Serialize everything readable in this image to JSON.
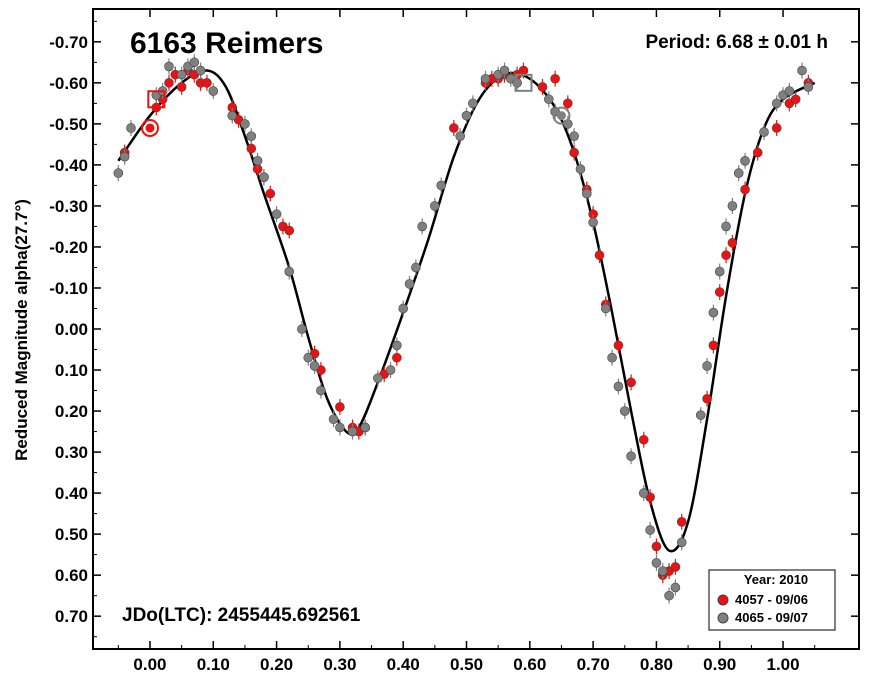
{
  "chart_data": {
    "type": "scatter",
    "title": "6163 Reimers",
    "period_label": "Period: 6.68 ± 0.01 h",
    "epoch_label": "JDo(LTC): 2455445.692561",
    "ylabel": "Reduced Magnitude alpha(27.7°)",
    "xlabel": "",
    "xlim": [
      -0.09,
      1.12
    ],
    "ylim": [
      0.78,
      -0.78
    ],
    "y_inverted": true,
    "grid": false,
    "legend_position": "bottom-right",
    "legend_title": "Year: 2010",
    "x_ticks": [
      "0.00",
      "0.10",
      "0.20",
      "0.30",
      "0.40",
      "0.50",
      "0.60",
      "0.70",
      "0.80",
      "0.90",
      "1.00"
    ],
    "y_ticks": [
      "-0.70",
      "-0.60",
      "-0.50",
      "-0.40",
      "-0.30",
      "-0.20",
      "-0.10",
      "0.00",
      "0.10",
      "0.20",
      "0.30",
      "0.40",
      "0.50",
      "0.60",
      "0.70"
    ],
    "x_tick_values": [
      0,
      0.1,
      0.2,
      0.3,
      0.4,
      0.5,
      0.6,
      0.7,
      0.8,
      0.9,
      1.0
    ],
    "y_tick_values": [
      -0.7,
      -0.6,
      -0.5,
      -0.4,
      -0.3,
      -0.2,
      -0.1,
      0,
      0.1,
      0.2,
      0.3,
      0.4,
      0.5,
      0.6,
      0.7
    ],
    "fit_curve": {
      "color": "#000000",
      "points": [
        [
          -0.05,
          -0.41
        ],
        [
          0.0,
          -0.52
        ],
        [
          0.05,
          -0.6
        ],
        [
          0.09,
          -0.63
        ],
        [
          0.12,
          -0.59
        ],
        [
          0.15,
          -0.47
        ],
        [
          0.18,
          -0.33
        ],
        [
          0.22,
          -0.15
        ],
        [
          0.25,
          0.02
        ],
        [
          0.28,
          0.17
        ],
        [
          0.31,
          0.25
        ],
        [
          0.33,
          0.24
        ],
        [
          0.36,
          0.13
        ],
        [
          0.4,
          -0.04
        ],
        [
          0.44,
          -0.22
        ],
        [
          0.48,
          -0.42
        ],
        [
          0.52,
          -0.56
        ],
        [
          0.56,
          -0.62
        ],
        [
          0.6,
          -0.61
        ],
        [
          0.64,
          -0.54
        ],
        [
          0.67,
          -0.43
        ],
        [
          0.7,
          -0.26
        ],
        [
          0.73,
          -0.04
        ],
        [
          0.76,
          0.2
        ],
        [
          0.79,
          0.42
        ],
        [
          0.82,
          0.54
        ],
        [
          0.85,
          0.47
        ],
        [
          0.88,
          0.22
        ],
        [
          0.91,
          -0.08
        ],
        [
          0.94,
          -0.33
        ],
        [
          0.97,
          -0.49
        ],
        [
          1.0,
          -0.56
        ],
        [
          1.05,
          -0.6
        ]
      ]
    },
    "series": [
      {
        "name": "4057 - 09/06",
        "color": "#ee1111",
        "points": [
          [
            -0.04,
            -0.43
          ],
          [
            0.01,
            -0.54
          ],
          [
            0.02,
            -0.56
          ],
          [
            0.03,
            -0.6
          ],
          [
            0.04,
            -0.62
          ],
          [
            0.05,
            -0.59
          ],
          [
            0.06,
            -0.63
          ],
          [
            0.07,
            -0.62
          ],
          [
            0.08,
            -0.6
          ],
          [
            0.09,
            -0.6
          ],
          [
            0.13,
            -0.54
          ],
          [
            0.14,
            -0.51
          ],
          [
            0.16,
            -0.44
          ],
          [
            0.17,
            -0.39
          ],
          [
            0.18,
            -0.37
          ],
          [
            0.19,
            -0.33
          ],
          [
            0.21,
            -0.25
          ],
          [
            0.22,
            -0.24
          ],
          [
            0.26,
            0.06
          ],
          [
            0.27,
            0.1
          ],
          [
            0.3,
            0.19
          ],
          [
            0.32,
            0.24
          ],
          [
            0.33,
            0.25
          ],
          [
            0.34,
            0.24
          ],
          [
            0.37,
            0.11
          ],
          [
            0.39,
            0.07
          ],
          [
            0.48,
            -0.49
          ],
          [
            0.53,
            -0.6
          ],
          [
            0.54,
            -0.61
          ],
          [
            0.55,
            -0.61
          ],
          [
            0.56,
            -0.62
          ],
          [
            0.58,
            -0.62
          ],
          [
            0.59,
            -0.63
          ],
          [
            0.62,
            -0.59
          ],
          [
            0.64,
            -0.61
          ],
          [
            0.66,
            -0.55
          ],
          [
            0.67,
            -0.43
          ],
          [
            0.69,
            -0.34
          ],
          [
            0.7,
            -0.28
          ],
          [
            0.71,
            -0.18
          ],
          [
            0.72,
            -0.06
          ],
          [
            0.74,
            0.04
          ],
          [
            0.76,
            0.13
          ],
          [
            0.78,
            0.27
          ],
          [
            0.79,
            0.41
          ],
          [
            0.8,
            0.53
          ],
          [
            0.81,
            0.6
          ],
          [
            0.82,
            0.59
          ],
          [
            0.83,
            0.58
          ],
          [
            0.84,
            0.47
          ],
          [
            0.88,
            0.17
          ],
          [
            0.89,
            0.04
          ],
          [
            0.9,
            -0.09
          ],
          [
            0.91,
            -0.18
          ],
          [
            0.92,
            -0.21
          ],
          [
            0.94,
            -0.34
          ],
          [
            0.96,
            -0.43
          ],
          [
            0.99,
            -0.49
          ],
          [
            1.01,
            -0.55
          ],
          [
            1.02,
            -0.56
          ],
          [
            1.04,
            -0.6
          ]
        ]
      },
      {
        "name": "4065 - 09/07",
        "color": "#808080",
        "points": [
          [
            -0.05,
            -0.38
          ],
          [
            -0.04,
            -0.42
          ],
          [
            -0.03,
            -0.49
          ],
          [
            0.01,
            -0.57
          ],
          [
            0.02,
            -0.58
          ],
          [
            0.03,
            -0.64
          ],
          [
            0.05,
            -0.62
          ],
          [
            0.06,
            -0.64
          ],
          [
            0.07,
            -0.65
          ],
          [
            0.08,
            -0.63
          ],
          [
            0.1,
            -0.58
          ],
          [
            0.13,
            -0.52
          ],
          [
            0.15,
            -0.5
          ],
          [
            0.16,
            -0.47
          ],
          [
            0.17,
            -0.41
          ],
          [
            0.18,
            -0.37
          ],
          [
            0.2,
            -0.28
          ],
          [
            0.22,
            -0.14
          ],
          [
            0.24,
            0.0
          ],
          [
            0.25,
            0.07
          ],
          [
            0.26,
            0.09
          ],
          [
            0.27,
            0.15
          ],
          [
            0.29,
            0.22
          ],
          [
            0.3,
            0.24
          ],
          [
            0.32,
            0.25
          ],
          [
            0.34,
            0.24
          ],
          [
            0.36,
            0.12
          ],
          [
            0.38,
            0.1
          ],
          [
            0.39,
            0.04
          ],
          [
            0.4,
            -0.05
          ],
          [
            0.41,
            -0.11
          ],
          [
            0.42,
            -0.15
          ],
          [
            0.43,
            -0.25
          ],
          [
            0.45,
            -0.3
          ],
          [
            0.46,
            -0.35
          ],
          [
            0.49,
            -0.47
          ],
          [
            0.5,
            -0.52
          ],
          [
            0.51,
            -0.55
          ],
          [
            0.53,
            -0.61
          ],
          [
            0.55,
            -0.62
          ],
          [
            0.56,
            -0.63
          ],
          [
            0.57,
            -0.61
          ],
          [
            0.58,
            -0.6
          ],
          [
            0.63,
            -0.56
          ],
          [
            0.64,
            -0.53
          ],
          [
            0.66,
            -0.5
          ],
          [
            0.67,
            -0.47
          ],
          [
            0.68,
            -0.39
          ],
          [
            0.69,
            -0.33
          ],
          [
            0.7,
            -0.26
          ],
          [
            0.72,
            -0.05
          ],
          [
            0.73,
            0.07
          ],
          [
            0.74,
            0.14
          ],
          [
            0.75,
            0.2
          ],
          [
            0.76,
            0.31
          ],
          [
            0.78,
            0.4
          ],
          [
            0.79,
            0.49
          ],
          [
            0.8,
            0.57
          ],
          [
            0.81,
            0.59
          ],
          [
            0.82,
            0.65
          ],
          [
            0.83,
            0.63
          ],
          [
            0.84,
            0.52
          ],
          [
            0.87,
            0.21
          ],
          [
            0.88,
            0.09
          ],
          [
            0.89,
            -0.04
          ],
          [
            0.9,
            -0.14
          ],
          [
            0.91,
            -0.25
          ],
          [
            0.92,
            -0.3
          ],
          [
            0.93,
            -0.38
          ],
          [
            0.94,
            -0.41
          ],
          [
            0.97,
            -0.48
          ],
          [
            0.99,
            -0.55
          ],
          [
            1.0,
            -0.57
          ],
          [
            1.01,
            -0.58
          ],
          [
            1.03,
            -0.63
          ],
          [
            1.04,
            -0.59
          ]
        ]
      }
    ],
    "annotations": [
      {
        "kind": "circle",
        "x": 0.0,
        "y": -0.49,
        "color": "#ee1111"
      },
      {
        "kind": "square",
        "x": 0.01,
        "y": -0.56,
        "color": "#ee1111"
      },
      {
        "kind": "square",
        "x": 0.59,
        "y": -0.6,
        "color": "#808080"
      },
      {
        "kind": "circle",
        "x": 0.65,
        "y": -0.52,
        "color": "#808080"
      }
    ]
  }
}
